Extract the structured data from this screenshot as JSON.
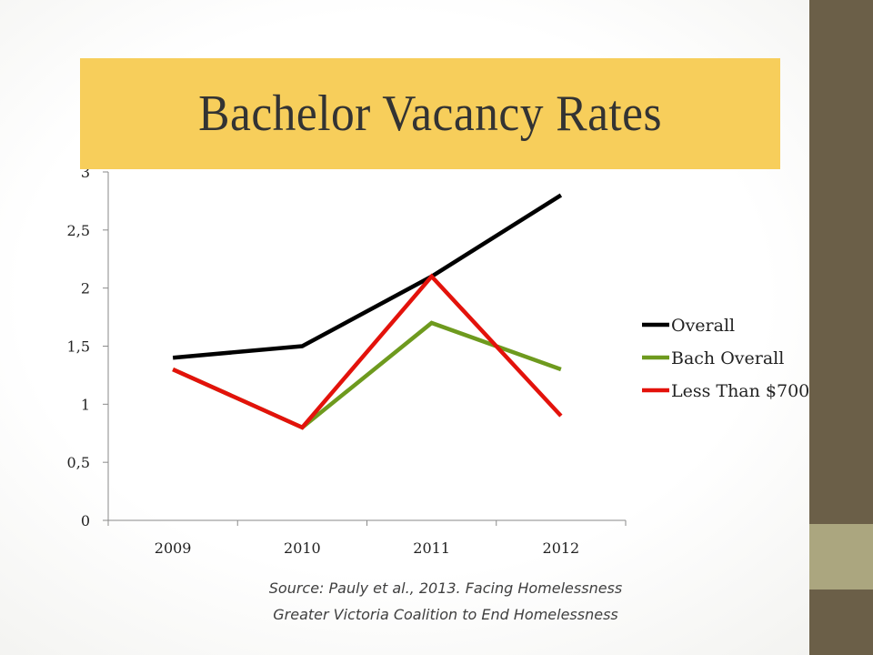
{
  "slide": {
    "title": "Bachelor Vacancy Rates",
    "source_line1": "Source:  Pauly et al., 2013. Facing Homelessness",
    "source_line2": "Greater Victoria Coalition to End Homelessness"
  },
  "colors": {
    "title_bg": "#f7ce5b",
    "sidebar_dark": "#6b5f48",
    "sidebar_accent": "#aba67f"
  },
  "chart_data": {
    "type": "line",
    "title": "",
    "xlabel": "",
    "ylabel": "",
    "categories": [
      "2009",
      "2010",
      "2011",
      "2012"
    ],
    "ylim": [
      0,
      3
    ],
    "y_ticks": [
      0,
      0.5,
      1,
      1.5,
      2,
      2.5,
      3
    ],
    "y_tick_labels": [
      "0",
      "0,5",
      "1",
      "1,5",
      "2",
      "2,5",
      "3"
    ],
    "grid": false,
    "legend_position": "right",
    "series": [
      {
        "name": "Overall",
        "color": "#000000",
        "values": [
          1.4,
          1.5,
          2.1,
          2.8
        ]
      },
      {
        "name": "Bach Overall",
        "color": "#6e9a1e",
        "values": [
          1.3,
          0.8,
          1.7,
          1.3
        ]
      },
      {
        "name": "Less Than $700",
        "color": "#e3120b",
        "values": [
          1.3,
          0.8,
          2.1,
          0.9
        ]
      }
    ]
  }
}
